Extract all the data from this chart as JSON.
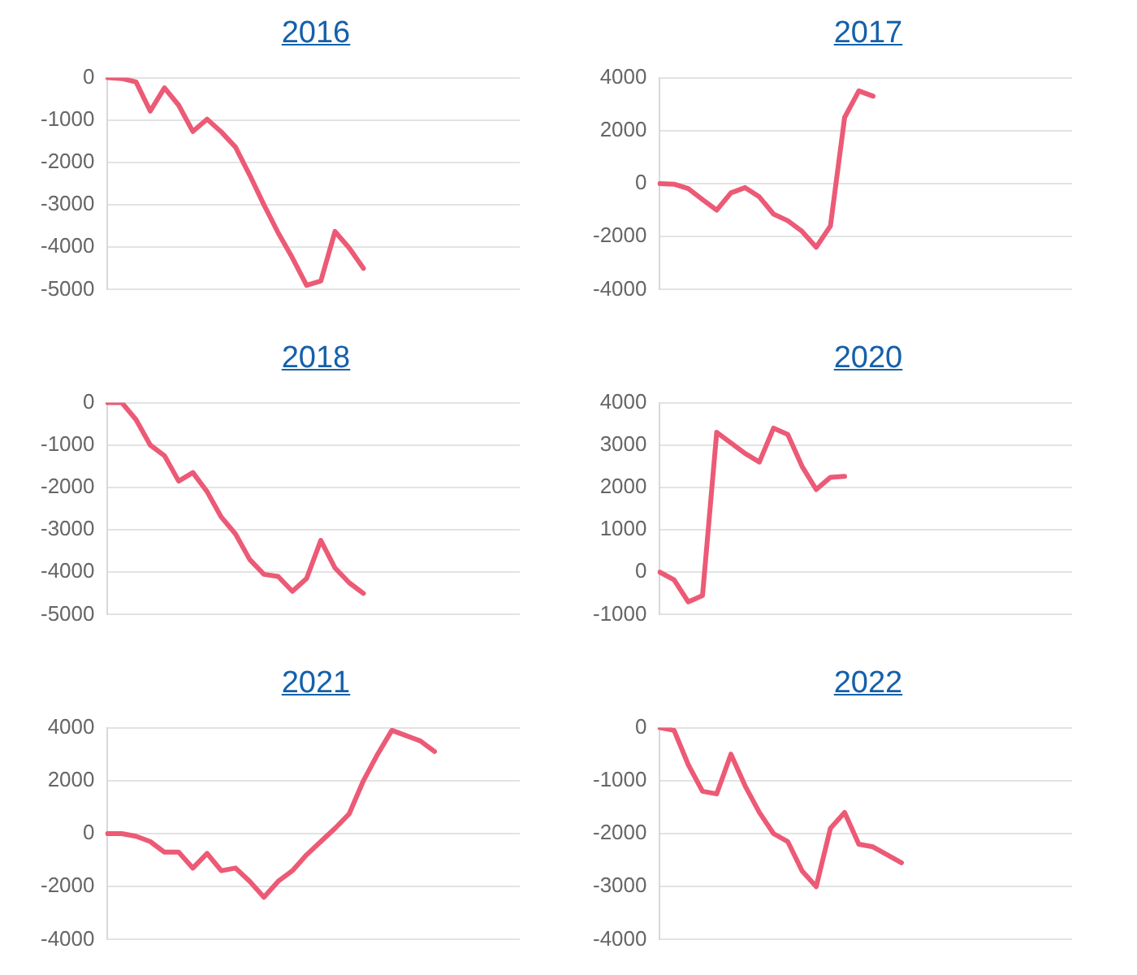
{
  "chart_data": [
    {
      "type": "line",
      "title": "2016",
      "categories": [
        null,
        null,
        null,
        null,
        null,
        null,
        null,
        null,
        null,
        null,
        null,
        null,
        null,
        null,
        null,
        null,
        null,
        null,
        null,
        null,
        null,
        null,
        null,
        null,
        null,
        null,
        null,
        null,
        null,
        null
      ],
      "ylim": [
        -5000,
        0
      ],
      "yticks": [
        -5000,
        -4000,
        -3000,
        -2000,
        -1000,
        0
      ],
      "grid": "y",
      "tick_labels": "y",
      "marker": "none",
      "line_style": "solid",
      "series": [
        {
          "color": "#ec5a76",
          "values": [
            0,
            -20,
            -100,
            -790,
            -240,
            -650,
            -1270,
            -980,
            -1280,
            -1640,
            -2300,
            -3000,
            -3660,
            -4250,
            -4900,
            -4800,
            -3630,
            -4020,
            -4500,
            null,
            null,
            null,
            null,
            null,
            null,
            null,
            null,
            null,
            null,
            null
          ]
        }
      ]
    },
    {
      "type": "line",
      "title": "2017",
      "categories": [
        null,
        null,
        null,
        null,
        null,
        null,
        null,
        null,
        null,
        null,
        null,
        null,
        null,
        null,
        null,
        null,
        null,
        null,
        null,
        null,
        null,
        null,
        null,
        null,
        null,
        null,
        null,
        null,
        null,
        null
      ],
      "ylim": [
        -4000,
        4000
      ],
      "yticks": [
        -4000,
        -2000,
        0,
        2000,
        4000
      ],
      "grid": "y",
      "tick_labels": "y",
      "marker": "none",
      "line_style": "solid",
      "series": [
        {
          "color": "#ec5a76",
          "values": [
            0,
            -20,
            -190,
            -600,
            -1000,
            -350,
            -150,
            -500,
            -1150,
            -1400,
            -1800,
            -2400,
            -1600,
            2500,
            3500,
            3300,
            null,
            null,
            null,
            null,
            null,
            null,
            null,
            null,
            null,
            null,
            null,
            null,
            null,
            null
          ]
        }
      ]
    },
    {
      "type": "line",
      "title": "2018",
      "categories": [
        null,
        null,
        null,
        null,
        null,
        null,
        null,
        null,
        null,
        null,
        null,
        null,
        null,
        null,
        null,
        null,
        null,
        null,
        null,
        null,
        null,
        null,
        null,
        null,
        null,
        null,
        null,
        null,
        null,
        null
      ],
      "ylim": [
        -5000,
        0
      ],
      "yticks": [
        -5000,
        -4000,
        -3000,
        -2000,
        -1000,
        0
      ],
      "grid": "y",
      "tick_labels": "y",
      "marker": "none",
      "line_style": "solid",
      "series": [
        {
          "color": "#ec5a76",
          "values": [
            0,
            0,
            -400,
            -1000,
            -1250,
            -1850,
            -1650,
            -2100,
            -2700,
            -3100,
            -3700,
            -4050,
            -4100,
            -4450,
            -4150,
            -3250,
            -3900,
            -4250,
            -4500,
            null,
            null,
            null,
            null,
            null,
            null,
            null,
            null,
            null,
            null,
            null
          ]
        }
      ]
    },
    {
      "type": "line",
      "title": "2020",
      "categories": [
        null,
        null,
        null,
        null,
        null,
        null,
        null,
        null,
        null,
        null,
        null,
        null,
        null,
        null,
        null,
        null,
        null,
        null,
        null,
        null,
        null,
        null,
        null,
        null,
        null,
        null,
        null,
        null,
        null,
        null
      ],
      "ylim": [
        -1000,
        4000
      ],
      "yticks": [
        -1000,
        0,
        1000,
        2000,
        3000,
        4000
      ],
      "grid": "y",
      "tick_labels": "y",
      "marker": "none",
      "line_style": "solid",
      "series": [
        {
          "color": "#ec5a76",
          "values": [
            0,
            -180,
            -700,
            -550,
            3300,
            3050,
            2800,
            2600,
            3400,
            3250,
            2500,
            1950,
            2240,
            2260,
            null,
            null,
            null,
            null,
            null,
            null,
            null,
            null,
            null,
            null,
            null,
            null,
            null,
            null,
            null,
            null
          ]
        }
      ]
    },
    {
      "type": "line",
      "title": "2021",
      "categories": [
        null,
        null,
        null,
        null,
        null,
        null,
        null,
        null,
        null,
        null,
        null,
        null,
        null,
        null,
        null,
        null,
        null,
        null,
        null,
        null,
        null,
        null,
        null,
        null,
        null,
        null,
        null,
        null,
        null,
        null
      ],
      "ylim": [
        -4000,
        4000
      ],
      "yticks": [
        -4000,
        -2000,
        0,
        2000,
        4000
      ],
      "grid": "y",
      "tick_labels": "y",
      "marker": "none",
      "line_style": "solid",
      "series": [
        {
          "color": "#ec5a76",
          "values": [
            0,
            0,
            -100,
            -300,
            -700,
            -700,
            -1300,
            -750,
            -1400,
            -1300,
            -1800,
            -2400,
            -1800,
            -1400,
            -800,
            -300,
            200,
            750,
            2000,
            3000,
            3900,
            3700,
            3500,
            3100,
            null,
            null,
            null,
            null,
            null,
            null
          ]
        }
      ]
    },
    {
      "type": "line",
      "title": "2022",
      "categories": [
        null,
        null,
        null,
        null,
        null,
        null,
        null,
        null,
        null,
        null,
        null,
        null,
        null,
        null,
        null,
        null,
        null,
        null,
        null,
        null,
        null,
        null,
        null,
        null,
        null,
        null,
        null,
        null,
        null,
        null
      ],
      "ylim": [
        -4000,
        0
      ],
      "yticks": [
        -4000,
        -3000,
        -2000,
        -1000,
        0
      ],
      "grid": "y",
      "tick_labels": "y",
      "marker": "none",
      "line_style": "solid",
      "series": [
        {
          "color": "#ec5a76",
          "values": [
            0,
            -50,
            -700,
            -1200,
            -1250,
            -500,
            -1100,
            -1600,
            -2000,
            -2150,
            -2700,
            -3000,
            -1900,
            -1600,
            -2200,
            -2250,
            -2400,
            -2550,
            null,
            null,
            null,
            null,
            null,
            null,
            null,
            null,
            null,
            null,
            null,
            null
          ]
        }
      ]
    }
  ]
}
